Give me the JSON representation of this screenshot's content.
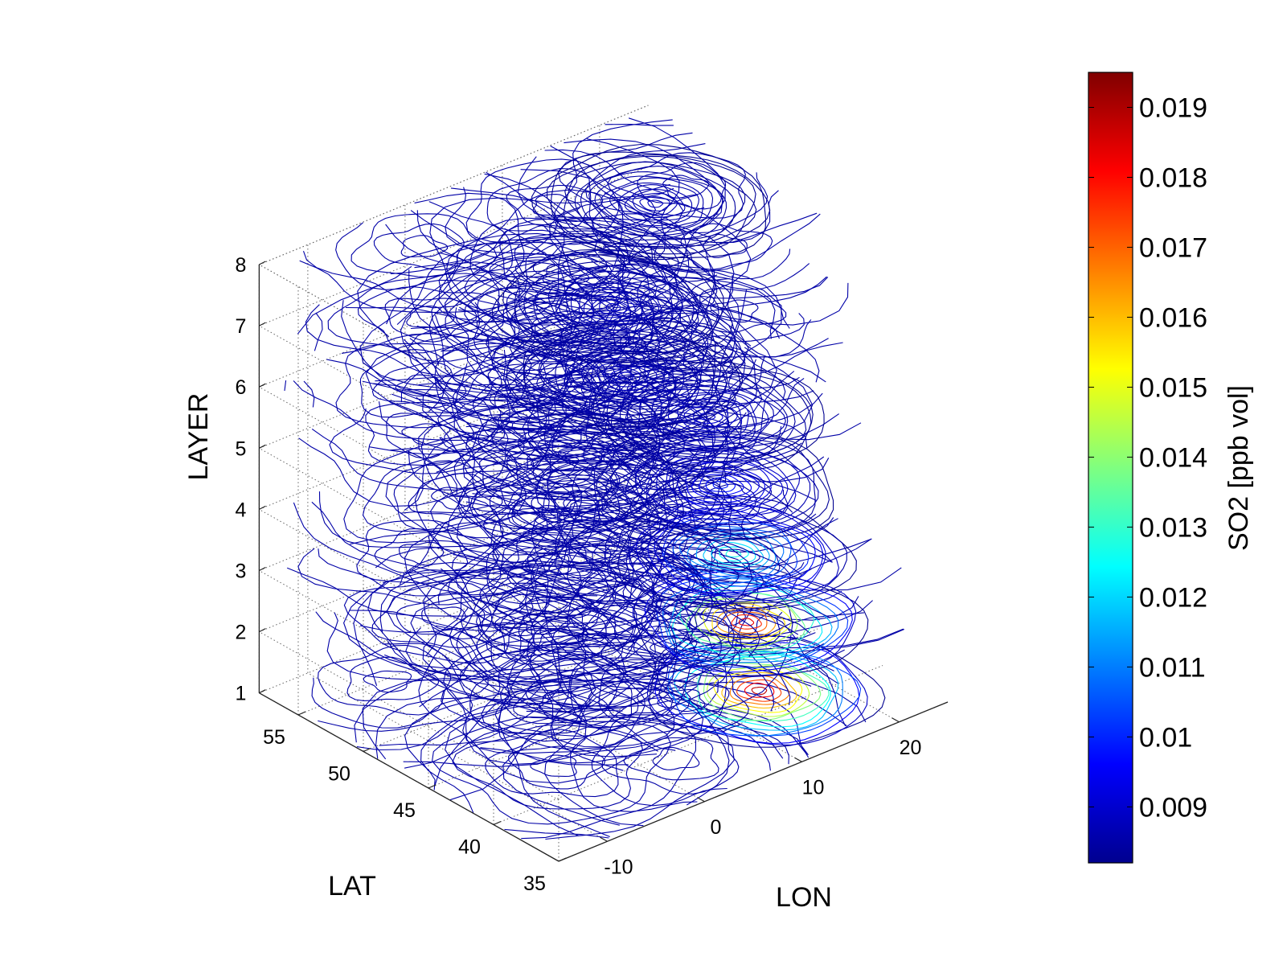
{
  "chart_data": {
    "type": "contour3d",
    "xlabel": "LON",
    "ylabel": "LAT",
    "zlabel": "LAYER",
    "colorbar_label": "SO2 [ppb vol]",
    "x_ticks": [
      "-10",
      "0",
      "10",
      "20"
    ],
    "y_ticks": [
      "35",
      "40",
      "45",
      "50",
      "55"
    ],
    "z_ticks": [
      "1",
      "2",
      "3",
      "4",
      "5",
      "6",
      "7",
      "8"
    ],
    "xlim": [
      -15,
      25
    ],
    "ylim": [
      35,
      58
    ],
    "zlim": [
      1,
      8
    ],
    "colorbar_ticks": [
      "0.009",
      "0.01",
      "0.011",
      "0.012",
      "0.013",
      "0.014",
      "0.015",
      "0.016",
      "0.017",
      "0.018",
      "0.019"
    ],
    "colorbar_range": [
      0.0082,
      0.0195
    ],
    "colormap": "jet",
    "grid": true,
    "layers": [
      {
        "layer": 1,
        "peak": 0.0195,
        "peak_lon": 15,
        "peak_lat": 42
      },
      {
        "layer": 2,
        "peak": 0.019,
        "peak_lon": 15,
        "peak_lat": 43
      },
      {
        "layer": 3,
        "peak": 0.013,
        "peak_lon": 15,
        "peak_lat": 44
      },
      {
        "layer": 4,
        "peak": 0.01,
        "peak_lon": 15,
        "peak_lat": 45
      },
      {
        "layer": 5,
        "peak": 0.0092,
        "peak_lon": 15,
        "peak_lat": 46
      },
      {
        "layer": 6,
        "peak": 0.009,
        "peak_lon": 8,
        "peak_lat": 47
      },
      {
        "layer": 7,
        "peak": 0.009,
        "peak_lon": 8,
        "peak_lat": 48
      },
      {
        "layer": 8,
        "peak": 0.0088,
        "peak_lon": 15,
        "peak_lat": 50
      }
    ]
  }
}
